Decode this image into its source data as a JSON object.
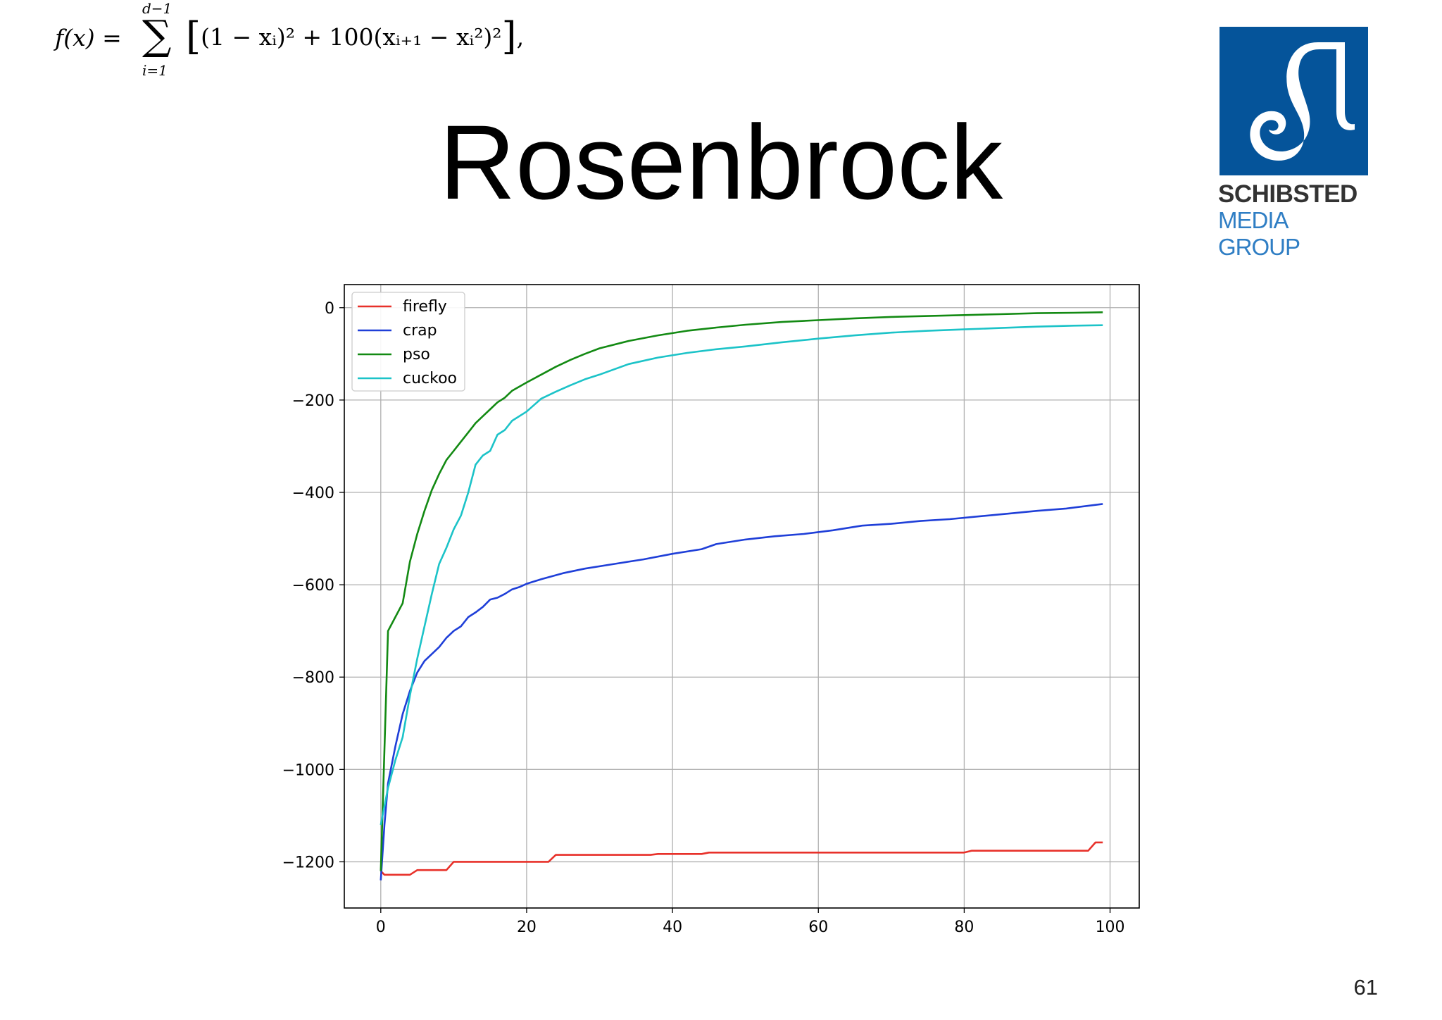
{
  "slide": {
    "title": "Rosenbrock",
    "page_number": "61"
  },
  "formula": {
    "lhs": "f(x) =",
    "sum_upper": "d−1",
    "sum_lower": "i=1",
    "sum_sign": "∑",
    "body": "(1 − xᵢ)² + 100(xᵢ₊₁ − xᵢ²)²",
    "trailing": ","
  },
  "logo": {
    "line1": "SCHIBSTED",
    "line2": "MEDIA GROUP",
    "color": "#05549a"
  },
  "chart_data": {
    "type": "line",
    "title": "",
    "xlabel": "",
    "ylabel": "",
    "xlim": [
      -5,
      104
    ],
    "ylim": [
      -1300,
      50
    ],
    "xticks": [
      0,
      20,
      40,
      60,
      80,
      100
    ],
    "yticks": [
      0,
      -200,
      -400,
      -600,
      -800,
      -1000,
      -1200
    ],
    "xtick_labels": [
      "0",
      "20",
      "40",
      "60",
      "80",
      "100"
    ],
    "ytick_labels": [
      "0",
      "−200",
      "−400",
      "−600",
      "−800",
      "−1000",
      "−1200"
    ],
    "grid": true,
    "legend_position": "upper-left",
    "series": [
      {
        "name": "firefly",
        "color": "#e8312a",
        "x": [
          0,
          0.5,
          4,
          5,
          9,
          10,
          23,
          24,
          37,
          38,
          44,
          45,
          80,
          81,
          97,
          98,
          99
        ],
        "y": [
          -1220,
          -1228,
          -1228,
          -1218,
          -1218,
          -1200,
          -1200,
          -1185,
          -1185,
          -1183,
          -1183,
          -1180,
          -1180,
          -1176,
          -1176,
          -1158,
          -1158
        ]
      },
      {
        "name": "crap",
        "color": "#1f3fd8",
        "x": [
          0,
          0.5,
          1,
          2,
          3,
          4,
          5,
          6,
          7,
          8,
          9,
          10,
          11,
          12,
          13,
          14,
          15,
          16,
          17,
          18,
          19,
          20,
          22,
          25,
          28,
          32,
          36,
          40,
          44,
          46,
          50,
          54,
          58,
          62,
          66,
          70,
          74,
          78,
          82,
          86,
          90,
          94,
          99
        ],
        "y": [
          -1240,
          -1120,
          -1030,
          -950,
          -880,
          -830,
          -790,
          -765,
          -750,
          -735,
          -715,
          -700,
          -690,
          -670,
          -660,
          -648,
          -632,
          -628,
          -620,
          -610,
          -605,
          -598,
          -588,
          -575,
          -565,
          -555,
          -545,
          -533,
          -523,
          -512,
          -502,
          -495,
          -490,
          -482,
          -472,
          -468,
          -462,
          -458,
          -452,
          -446,
          -440,
          -435,
          -425
        ]
      },
      {
        "name": "pso",
        "color": "#138a13",
        "x": [
          0,
          1,
          2,
          3,
          4,
          5,
          6,
          7,
          8,
          9,
          10,
          11,
          12,
          13,
          14,
          15,
          16,
          17,
          18,
          20,
          22,
          24,
          26,
          28,
          30,
          34,
          38,
          42,
          46,
          50,
          55,
          60,
          65,
          70,
          75,
          80,
          85,
          90,
          95,
          99
        ],
        "y": [
          -1220,
          -700,
          -670,
          -640,
          -550,
          -490,
          -440,
          -395,
          -360,
          -330,
          -310,
          -290,
          -270,
          -250,
          -235,
          -220,
          -205,
          -195,
          -180,
          -162,
          -145,
          -128,
          -113,
          -100,
          -88,
          -72,
          -60,
          -50,
          -43,
          -37,
          -31,
          -27,
          -23,
          -20,
          -18,
          -16,
          -14,
          -12,
          -11,
          -10
        ]
      },
      {
        "name": "cuckoo",
        "color": "#1cc3c8",
        "x": [
          0,
          1,
          2,
          3,
          4,
          5,
          6,
          7,
          8,
          9,
          10,
          11,
          12,
          13,
          14,
          15,
          16,
          17,
          18,
          20,
          22,
          24,
          26,
          28,
          30,
          34,
          38,
          42,
          46,
          50,
          55,
          60,
          65,
          70,
          75,
          80,
          85,
          90,
          95,
          99
        ],
        "y": [
          -1120,
          -1040,
          -980,
          -930,
          -840,
          -760,
          -690,
          -620,
          -555,
          -520,
          -480,
          -450,
          -400,
          -340,
          -320,
          -310,
          -275,
          -265,
          -245,
          -225,
          -197,
          -182,
          -168,
          -155,
          -145,
          -122,
          -108,
          -98,
          -90,
          -84,
          -75,
          -67,
          -60,
          -54,
          -50,
          -47,
          -44,
          -41,
          -39,
          -38
        ]
      }
    ]
  }
}
